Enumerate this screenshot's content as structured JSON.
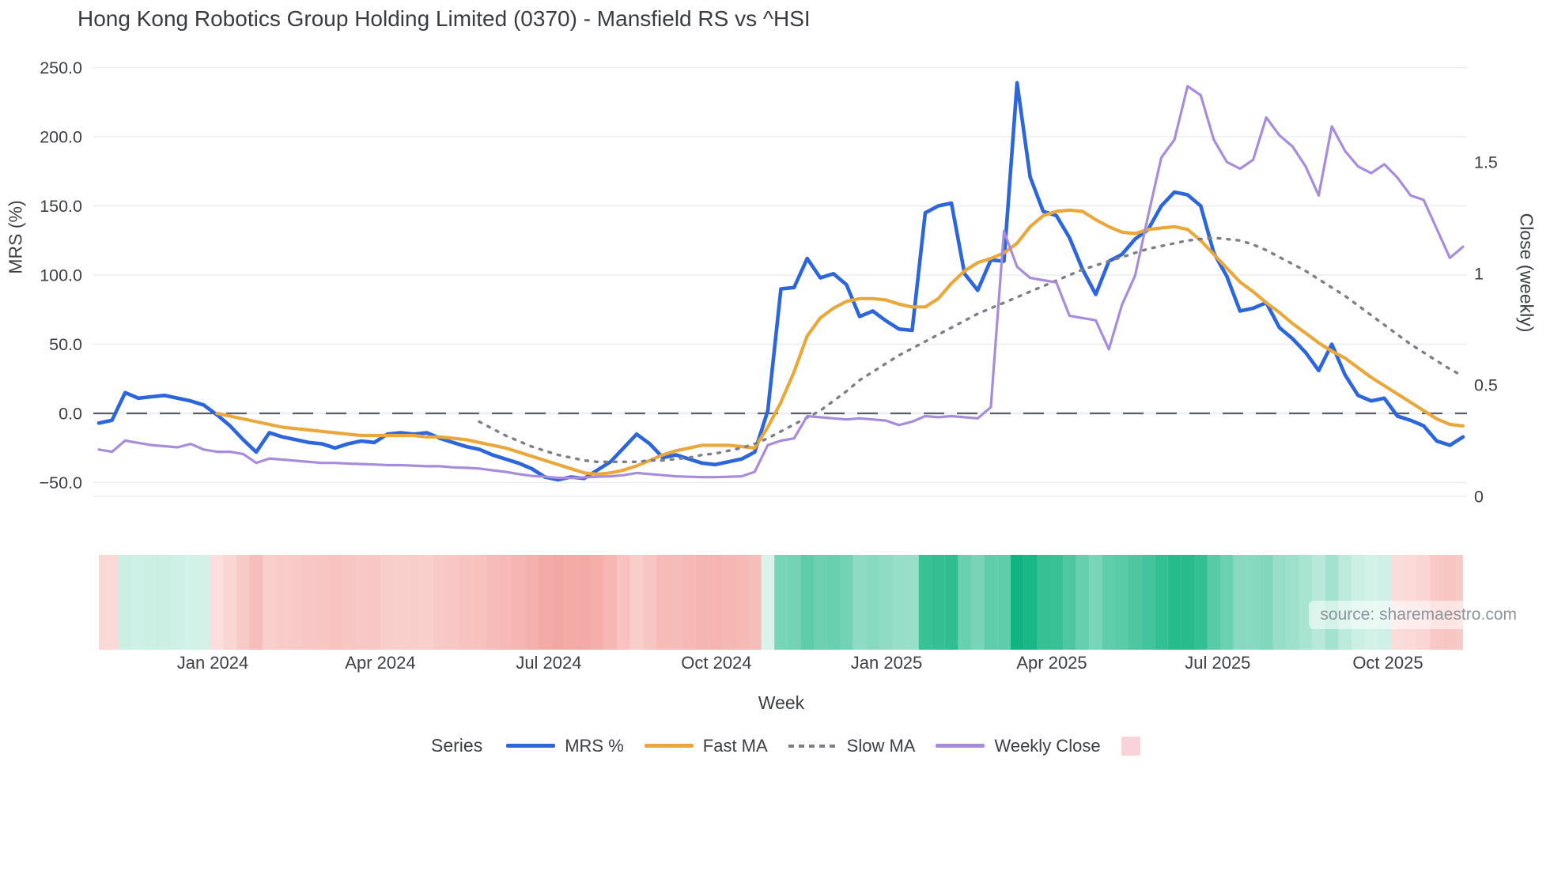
{
  "title": "Hong Kong Robotics Group Holding Limited (0370) - Mansfield RS vs ^HSI",
  "source": "source: sharemaestro.com",
  "axes": {
    "x": {
      "title": "Week",
      "tick_labels": [
        "Jan 2024",
        "Apr 2024",
        "Jul 2024",
        "Oct 2024",
        "Jan 2025",
        "Apr 2025",
        "Jul 2025",
        "Oct 2025"
      ],
      "tick_week_positions": [
        8.68,
        21.46,
        34.3,
        47.08,
        60.05,
        72.65,
        85.3,
        98.27
      ]
    },
    "y_left": {
      "title": "MRS (%)",
      "tick_labels": [
        "250.0",
        "200.0",
        "150.0",
        "100.0",
        "50.0",
        "0.0",
        "−50.0"
      ],
      "tick_values": [
        250,
        200,
        150,
        100,
        50,
        0,
        -50
      ]
    },
    "y_right": {
      "title": "Close (weekly)",
      "tick_labels": [
        "1.5",
        "1",
        "0.5",
        "0"
      ],
      "tick_values": [
        1.5,
        1,
        0.5,
        0
      ]
    }
  },
  "legend": {
    "title": "Series",
    "items": [
      {
        "label": "MRS %",
        "swatch": "line",
        "color": "#2d66da"
      },
      {
        "label": "Fast MA",
        "swatch": "line",
        "color": "#eaa83c"
      },
      {
        "label": "Slow MA",
        "swatch": "dotted-line",
        "color": "#7c7f85"
      },
      {
        "label": "Weekly Close",
        "swatch": "line",
        "color": "#a88cdc"
      },
      {
        "label": "",
        "swatch": "square",
        "color": "#f9d3d9"
      }
    ]
  },
  "band": {
    "derived_from": "MRS %",
    "positive_rgb": "16,180,128",
    "negative_rgb": "238,128,122"
  },
  "colors": {
    "grid": "#ebedf3",
    "zero_line": "#5a5f68",
    "text": "#3d4043",
    "background": "#ffffff"
  },
  "chart_data": {
    "type": "line",
    "x_unit": "week",
    "title": "Hong Kong Robotics Group Holding Limited (0370) - Mansfield RS vs ^HSI",
    "xlabel": "Week",
    "ylabel_left": "MRS (%)",
    "ylabel_right": "Close (weekly)",
    "x_range_labels": [
      "Nov 2023",
      "Nov 2025"
    ],
    "y_left_range": [
      -60,
      260
    ],
    "y_right_range": [
      0,
      2.0
    ],
    "grid": true,
    "zero_reference_line": 0,
    "legend_position": "bottom",
    "series": [
      {
        "name": "MRS %",
        "axis": "left",
        "style": "solid",
        "color": "#2d66da",
        "values": [
          -7,
          -5,
          15,
          11,
          12,
          13,
          11,
          9,
          6,
          -1,
          -9,
          -19,
          -28,
          -14,
          -17,
          -19,
          -21,
          -22,
          -25,
          -22,
          -20,
          -21,
          -15,
          -14,
          -15,
          -14,
          -18,
          -21,
          -24,
          -26,
          -30,
          -33,
          -36,
          -40,
          -46,
          -48,
          -46,
          -47,
          -41,
          -35,
          -25,
          -15,
          -22,
          -32,
          -30,
          -33,
          -36,
          -37,
          -35,
          -33,
          -28,
          2,
          90,
          91,
          112,
          98,
          101,
          93,
          70,
          74,
          67,
          61,
          60,
          145,
          150,
          152,
          101,
          89,
          111,
          110,
          239,
          171,
          146,
          143,
          127,
          104,
          86,
          110,
          115,
          126,
          133,
          150,
          160,
          158,
          150,
          116,
          99,
          74,
          76,
          80,
          62,
          54,
          44,
          31,
          50,
          28,
          13,
          9,
          11,
          -2,
          -5,
          -9,
          -20,
          -23,
          -17
        ]
      },
      {
        "name": "Fast MA",
        "axis": "left",
        "style": "solid",
        "color": "#eaa83c",
        "values": [
          null,
          null,
          null,
          null,
          null,
          null,
          null,
          null,
          null,
          0,
          -2,
          -4,
          -6,
          -8,
          -10,
          -11,
          -12,
          -13,
          -14,
          -15,
          -16,
          -16,
          -16,
          -16,
          -16,
          -17,
          -17,
          -18,
          -19,
          -21,
          -23,
          -25,
          -28,
          -31,
          -34,
          -37,
          -40,
          -43,
          -44,
          -43,
          -41,
          -38,
          -34,
          -30,
          -27,
          -25,
          -23,
          -23,
          -23,
          -24,
          -25,
          -10,
          8,
          30,
          56,
          69,
          76,
          81,
          83,
          83,
          82,
          79,
          77,
          77,
          83,
          94,
          103,
          109,
          112,
          116,
          123,
          135,
          143,
          146,
          147,
          146,
          140,
          135,
          131,
          130,
          133,
          134,
          135,
          133,
          125,
          115,
          105,
          95,
          88,
          80,
          73,
          65,
          58,
          51,
          45,
          40,
          33,
          26,
          20,
          14,
          8,
          2,
          -4,
          -8,
          -9
        ]
      },
      {
        "name": "Slow MA",
        "axis": "left",
        "style": "dotted",
        "color": "#7c7f85",
        "values": [
          null,
          null,
          null,
          null,
          null,
          null,
          null,
          null,
          null,
          null,
          null,
          null,
          null,
          null,
          null,
          null,
          null,
          null,
          null,
          null,
          null,
          null,
          null,
          null,
          null,
          null,
          null,
          null,
          null,
          -6,
          -11,
          -16,
          -20,
          -24,
          -27,
          -30,
          -32,
          -34,
          -35,
          -35,
          -35,
          -35,
          -34,
          -34,
          -33,
          -32,
          -30,
          -29,
          -27,
          -25,
          -22,
          -18,
          -13,
          -8,
          -3,
          2,
          9,
          16,
          24,
          30,
          36,
          42,
          47,
          52,
          57,
          62,
          67,
          72,
          76,
          80,
          84,
          88,
          92,
          96,
          100,
          104,
          107,
          110,
          113,
          116,
          119,
          121,
          123,
          125,
          126,
          127,
          126,
          125,
          122,
          118,
          113,
          108,
          103,
          97,
          91,
          85,
          78,
          71,
          64,
          57,
          50,
          44,
          38,
          32,
          27
        ]
      },
      {
        "name": "Weekly Close",
        "axis": "right",
        "style": "solid",
        "color": "#a88cdc",
        "values": [
          0.21,
          0.2,
          0.25,
          0.24,
          0.23,
          0.225,
          0.22,
          0.235,
          0.21,
          0.2,
          0.2,
          0.19,
          0.15,
          0.17,
          0.165,
          0.16,
          0.155,
          0.15,
          0.15,
          0.147,
          0.145,
          0.143,
          0.14,
          0.14,
          0.138,
          0.135,
          0.135,
          0.13,
          0.128,
          0.125,
          0.117,
          0.11,
          0.1,
          0.092,
          0.088,
          0.083,
          0.083,
          0.085,
          0.088,
          0.09,
          0.095,
          0.105,
          0.1,
          0.095,
          0.09,
          0.088,
          0.086,
          0.086,
          0.088,
          0.09,
          0.11,
          0.23,
          0.25,
          0.26,
          0.36,
          0.355,
          0.35,
          0.345,
          0.35,
          0.345,
          0.34,
          0.32,
          0.335,
          0.36,
          0.355,
          0.36,
          0.355,
          0.35,
          0.4,
          1.19,
          1.03,
          0.98,
          0.97,
          0.96,
          0.81,
          0.8,
          0.79,
          0.66,
          0.86,
          0.99,
          1.26,
          1.52,
          1.6,
          1.84,
          1.8,
          1.6,
          1.5,
          1.47,
          1.51,
          1.7,
          1.62,
          1.57,
          1.48,
          1.35,
          1.66,
          1.55,
          1.48,
          1.45,
          1.49,
          1.43,
          1.35,
          1.33,
          1.2,
          1.07,
          1.12
        ]
      }
    ]
  }
}
